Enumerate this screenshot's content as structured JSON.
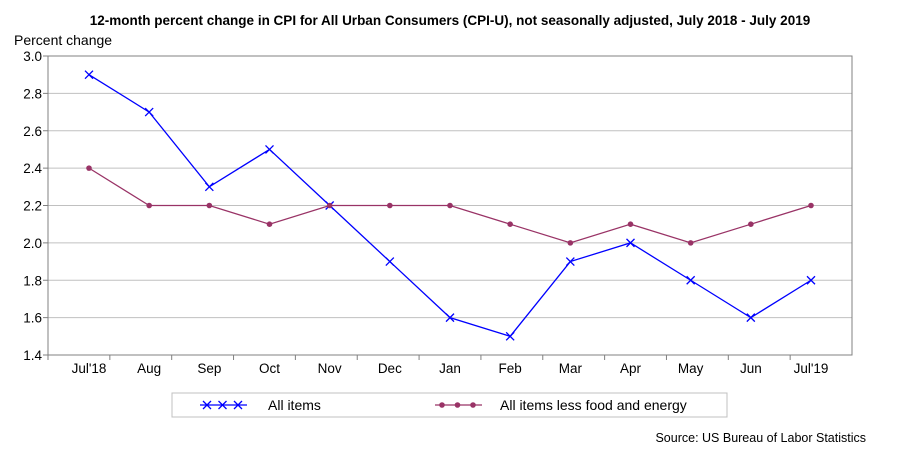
{
  "chart_data": {
    "type": "line",
    "title": "12-month percent change in CPI for All Urban Consumers (CPI-U), not seasonally adjusted, July 2018 - July 2019",
    "ylabel": "Percent change",
    "xlabel": "",
    "categories": [
      "Jul'18",
      "Aug",
      "Sep",
      "Oct",
      "Nov",
      "Dec",
      "Jan",
      "Feb",
      "Mar",
      "Apr",
      "May",
      "Jun",
      "Jul'19"
    ],
    "ylim": [
      1.4,
      3.0
    ],
    "yticks": [
      "1.4",
      "1.6",
      "1.8",
      "2.0",
      "2.2",
      "2.4",
      "2.6",
      "2.8",
      "3.0"
    ],
    "grid": true,
    "legend_placement": "bottom",
    "series": [
      {
        "name": "All items",
        "color": "#0000ff",
        "marker": "x",
        "values": [
          2.9,
          2.7,
          2.3,
          2.5,
          2.2,
          1.9,
          1.6,
          1.5,
          1.9,
          2.0,
          1.8,
          1.6,
          1.8
        ]
      },
      {
        "name": "All items less food and energy",
        "color": "#993366",
        "marker": "circle",
        "values": [
          2.4,
          2.2,
          2.2,
          2.1,
          2.2,
          2.2,
          2.2,
          2.1,
          2.0,
          2.1,
          2.0,
          2.1,
          2.2
        ]
      }
    ],
    "source": "Source: US Bureau of Labor Statistics"
  }
}
